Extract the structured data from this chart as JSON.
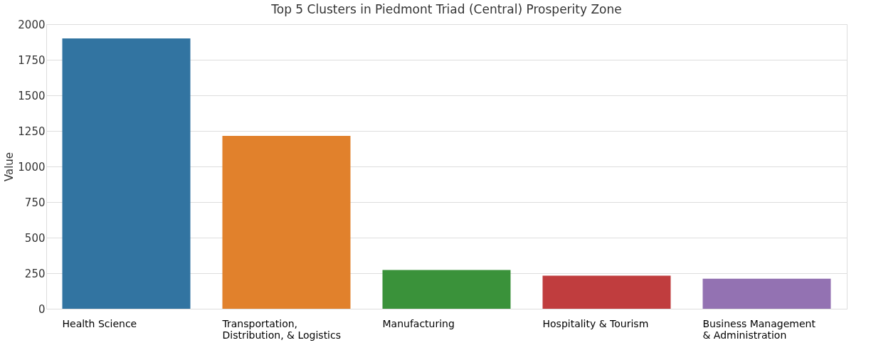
{
  "chart_data": {
    "type": "bar",
    "title": "Top 5 Clusters in Piedmont Triad (Central) Prosperity Zone",
    "ylabel": "Value",
    "categories": [
      "Health Science",
      "Transportation,\nDistribution, & Logistics",
      "Manufacturing",
      "Hospitality & Tourism",
      "Business Management\n& Administration"
    ],
    "values": [
      1900,
      1215,
      272,
      233,
      211
    ],
    "colors": [
      "#3274a1",
      "#e1812c",
      "#3a923a",
      "#c03d3e",
      "#9372b2"
    ],
    "ylim": [
      0,
      2000
    ],
    "yticks": [
      0,
      250,
      500,
      750,
      1000,
      1250,
      1500,
      1750,
      2000
    ],
    "grid": "y"
  }
}
